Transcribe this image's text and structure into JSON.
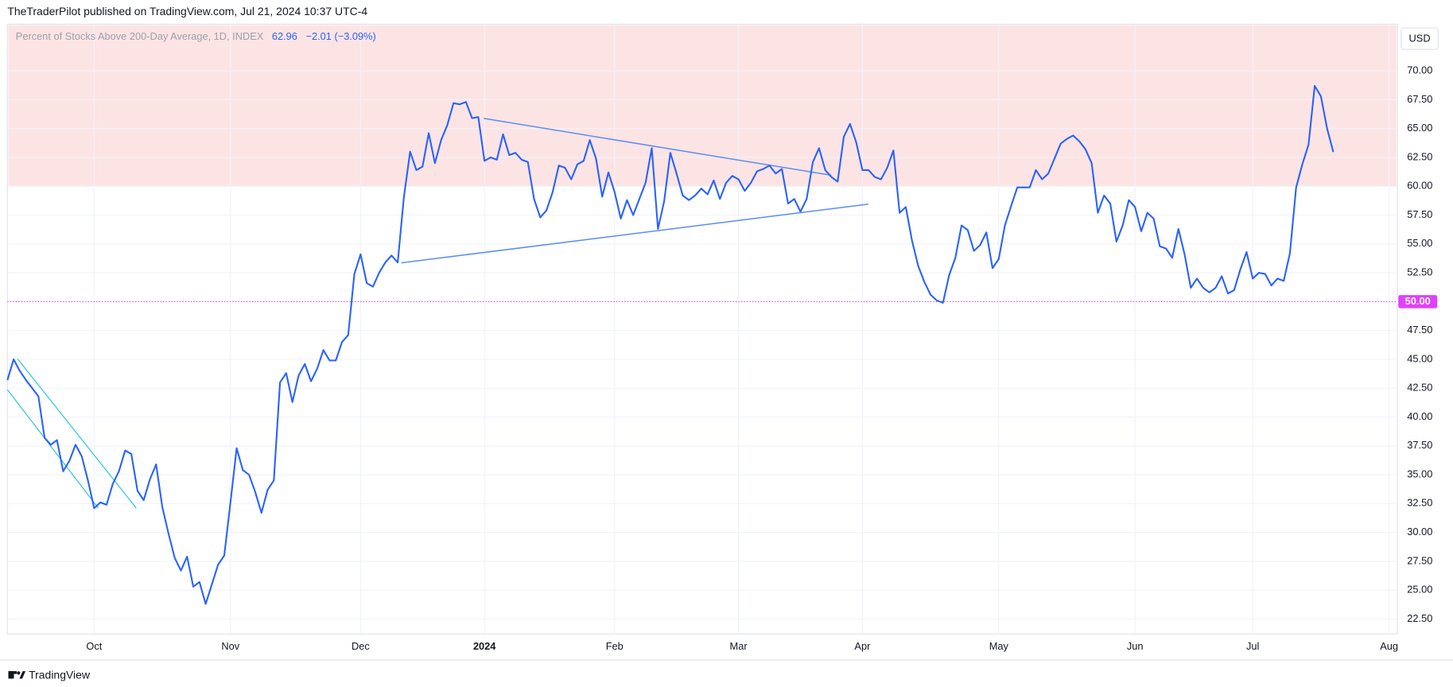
{
  "header": {
    "publisher": "TheTraderPilot published on TradingView.com, Jul 21, 2024 10:37 UTC-4"
  },
  "footer": {
    "brand": "TradingView"
  },
  "chart_data": {
    "type": "line",
    "title": "Percent of Stocks Above 200-Day Average, 1D, INDEX",
    "legend_value": "62.96",
    "legend_change": "−2.01 (−3.09%)",
    "currency": "USD",
    "color": "#2962ff",
    "band_from": 60,
    "band_color": "#fde4e4",
    "hline": {
      "value": 50,
      "label": "50.00"
    },
    "hline_color": "#e040fb",
    "ylim": [
      21.21,
      74.04
    ],
    "yticks": [
      {
        "value": 22.5,
        "label": "22.50"
      },
      {
        "value": 25,
        "label": "25.00"
      },
      {
        "value": 27.5,
        "label": "27.50"
      },
      {
        "value": 30,
        "label": "30.00"
      },
      {
        "value": 32.5,
        "label": "32.50"
      },
      {
        "value": 35,
        "label": "35.00"
      },
      {
        "value": 37.5,
        "label": "37.50"
      },
      {
        "value": 40,
        "label": "40.00"
      },
      {
        "value": 42.5,
        "label": "42.50"
      },
      {
        "value": 45,
        "label": "45.00"
      },
      {
        "value": 47.5,
        "label": "47.50"
      },
      {
        "value": 50,
        "label": "50.00"
      },
      {
        "value": 52.5,
        "label": "52.50"
      },
      {
        "value": 55,
        "label": "55.00"
      },
      {
        "value": 57.5,
        "label": "57.50"
      },
      {
        "value": 60,
        "label": "60.00"
      },
      {
        "value": 62.5,
        "label": "62.50"
      },
      {
        "value": 65,
        "label": "65.00"
      },
      {
        "value": 67.5,
        "label": "67.50"
      },
      {
        "value": 70,
        "label": "70.00"
      }
    ],
    "grid": true,
    "categories": [
      null,
      null,
      null,
      null,
      null,
      null,
      null,
      null,
      null,
      null,
      null,
      null,
      null,
      null,
      "Oct",
      null,
      null,
      null,
      null,
      null,
      null,
      null,
      null,
      null,
      null,
      null,
      null,
      null,
      null,
      null,
      null,
      null,
      null,
      null,
      null,
      null,
      "Nov",
      null,
      null,
      null,
      null,
      null,
      null,
      null,
      null,
      null,
      null,
      null,
      null,
      null,
      null,
      null,
      null,
      null,
      null,
      null,
      null,
      "Dec",
      null,
      null,
      null,
      null,
      null,
      null,
      null,
      null,
      null,
      null,
      null,
      null,
      null,
      null,
      null,
      null,
      null,
      null,
      null,
      "2024",
      null,
      null,
      null,
      null,
      null,
      null,
      null,
      null,
      null,
      null,
      null,
      null,
      null,
      null,
      null,
      null,
      null,
      null,
      null,
      null,
      "Feb",
      null,
      null,
      null,
      null,
      null,
      null,
      null,
      null,
      null,
      null,
      null,
      null,
      null,
      null,
      null,
      null,
      null,
      null,
      null,
      "Mar",
      null,
      null,
      null,
      null,
      null,
      null,
      null,
      null,
      null,
      null,
      null,
      null,
      null,
      null,
      null,
      null,
      null,
      null,
      null,
      "Apr",
      null,
      null,
      null,
      null,
      null,
      null,
      null,
      null,
      null,
      null,
      null,
      null,
      null,
      null,
      null,
      null,
      null,
      null,
      null,
      null,
      null,
      "May",
      null,
      null,
      null,
      null,
      null,
      null,
      null,
      null,
      null,
      null,
      null,
      null,
      null,
      null,
      null,
      null,
      null,
      null,
      null,
      null,
      null,
      "Jun",
      null,
      null,
      null,
      null,
      null,
      null,
      null,
      null,
      null,
      null,
      null,
      null,
      null,
      null,
      null,
      null,
      null,
      null,
      "Jul",
      null,
      null,
      null,
      null,
      null,
      null,
      null,
      null,
      null,
      null,
      null,
      null,
      null,
      null,
      null,
      null,
      null,
      null,
      null,
      null,
      null,
      "Aug"
    ],
    "values": [
      43.2,
      45.0,
      44.0,
      43.2,
      42.5,
      41.8,
      38.2,
      37.6,
      38.0,
      35.3,
      36.2,
      37.6,
      36.6,
      34.5,
      32.1,
      32.6,
      32.4,
      34.2,
      35.3,
      37.1,
      36.8,
      33.6,
      32.8,
      34.6,
      35.9,
      32.2,
      29.9,
      27.8,
      26.7,
      27.9,
      25.3,
      25.7,
      23.8,
      25.5,
      27.2,
      28.0,
      32.6,
      37.3,
      35.4,
      35.0,
      33.5,
      31.7,
      33.7,
      34.5,
      43.0,
      43.8,
      41.3,
      43.6,
      44.6,
      43.1,
      44.2,
      45.8,
      44.9,
      44.9,
      46.5,
      47.1,
      52.4,
      54.1,
      51.6,
      51.3,
      52.5,
      53.4,
      54.0,
      53.4,
      59.1,
      63.0,
      61.4,
      61.7,
      64.6,
      62.0,
      64.0,
      65.3,
      67.2,
      67.1,
      67.3,
      65.9,
      66.0,
      62.2,
      62.5,
      62.3,
      64.5,
      62.7,
      62.9,
      62.3,
      62.1,
      58.9,
      57.3,
      57.9,
      59.5,
      61.8,
      61.6,
      60.6,
      61.9,
      62.2,
      64.0,
      62.4,
      59.1,
      61.2,
      59.5,
      57.2,
      58.8,
      57.5,
      58.9,
      60.3,
      63.3,
      56.3,
      58.7,
      62.9,
      61.1,
      59.2,
      58.8,
      59.2,
      59.8,
      59.3,
      60.5,
      58.9,
      60.3,
      60.9,
      60.6,
      59.6,
      60.3,
      61.3,
      61.5,
      61.8,
      61.1,
      61.5,
      58.5,
      58.9,
      57.8,
      58.9,
      62.1,
      63.3,
      61.4,
      60.8,
      60.4,
      64.3,
      65.4,
      63.8,
      61.4,
      61.4,
      60.8,
      60.6,
      61.6,
      63.1,
      57.7,
      58.2,
      55.3,
      53.1,
      51.7,
      50.6,
      50.1,
      49.9,
      52.3,
      53.8,
      56.6,
      56.2,
      54.4,
      54.9,
      56.0,
      52.9,
      53.7,
      56.6,
      58.3,
      59.9,
      59.9,
      59.9,
      61.4,
      60.6,
      61.1,
      62.4,
      63.7,
      64.1,
      64.4,
      63.9,
      63.2,
      62.0,
      57.7,
      59.2,
      58.5,
      55.2,
      56.6,
      58.8,
      58.2,
      56.1,
      57.7,
      57.2,
      54.8,
      54.6,
      53.8,
      56.3,
      54.1,
      51.2,
      52.0,
      51.2,
      50.8,
      51.2,
      52.2,
      50.7,
      51.0,
      52.8,
      54.3,
      52.0,
      52.5,
      52.4,
      51.4,
      52.0,
      51.8,
      54.2,
      59.9,
      61.9,
      63.6,
      68.7,
      67.8,
      65.0,
      62.96,
      null,
      null,
      null,
      null,
      null,
      null,
      null,
      null,
      null
    ]
  }
}
